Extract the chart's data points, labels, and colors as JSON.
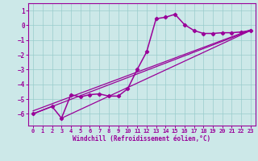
{
  "bg_color": "#cce8e8",
  "grid_color": "#99cccc",
  "line_color": "#990099",
  "xlabel": "Windchill (Refroidissement éolien,°C)",
  "xlim": [
    -0.5,
    23.5
  ],
  "ylim": [
    -6.8,
    1.5
  ],
  "yticks": [
    1,
    0,
    -1,
    -2,
    -3,
    -4,
    -5,
    -6
  ],
  "xticks": [
    0,
    1,
    2,
    3,
    4,
    5,
    6,
    7,
    8,
    9,
    10,
    11,
    12,
    13,
    14,
    15,
    16,
    17,
    18,
    19,
    20,
    21,
    22,
    23
  ],
  "main_x": [
    0,
    2,
    3,
    4,
    5,
    6,
    7,
    8,
    9,
    10,
    11,
    12,
    13,
    14,
    15,
    16,
    17,
    18,
    19,
    20,
    21,
    22,
    23
  ],
  "main_y": [
    -6.0,
    -5.5,
    -6.3,
    -4.7,
    -4.85,
    -4.7,
    -4.65,
    -4.8,
    -4.8,
    -4.3,
    -3.0,
    -1.8,
    0.45,
    0.55,
    0.75,
    0.05,
    -0.35,
    -0.55,
    -0.55,
    -0.5,
    -0.5,
    -0.45,
    -0.35
  ],
  "line1_x": [
    0,
    23
  ],
  "line1_y": [
    -6.0,
    -0.35
  ],
  "line2_x": [
    3,
    23
  ],
  "line2_y": [
    -6.3,
    -0.35
  ],
  "line3_x": [
    0,
    23
  ],
  "line3_y": [
    -5.8,
    -0.3
  ]
}
